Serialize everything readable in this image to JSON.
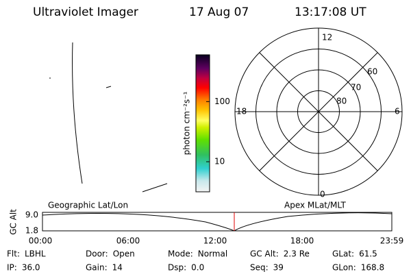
{
  "header": {
    "title": "Ultraviolet Imager",
    "date": "17 Aug 07",
    "time": "13:17:08 UT"
  },
  "colorbar": {
    "label": "photon cm⁻²s⁻¹",
    "log": true,
    "range": [
      3.16,
      600
    ],
    "ticks": [
      10,
      100
    ]
  },
  "dial": {
    "lat_labels": [
      "80",
      "70",
      "60"
    ],
    "mlt_labels": {
      "top": "12",
      "right": "6",
      "bottom": "0",
      "left": "18"
    }
  },
  "timeline": {
    "left_title": "Geographic Lat/Lon",
    "right_title": "Apex MLat/MLT",
    "y_label": "GC Alt",
    "y_ticks": [
      "9.0",
      "1.8"
    ],
    "x_ticks": [
      "00:00",
      "06:00",
      "12:00",
      "18:00",
      "23:59"
    ]
  },
  "footer": {
    "rows": [
      [
        {
          "label": "Flt:",
          "value": "LBHL"
        },
        {
          "label": "Door:",
          "value": "Open"
        },
        {
          "label": "Mode:",
          "value": "Normal"
        },
        {
          "label": "GC Alt:",
          "value": "2.3 Re"
        },
        {
          "label": "GLat:",
          "value": "61.5"
        }
      ],
      [
        {
          "label": "IP:",
          "value": "36.0"
        },
        {
          "label": "Gain:",
          "value": "14"
        },
        {
          "label": "Dsp:",
          "value": "0.0"
        },
        {
          "label": "Seq:",
          "value": "39"
        },
        {
          "label": "GLon:",
          "value": "168.8"
        }
      ]
    ]
  }
}
